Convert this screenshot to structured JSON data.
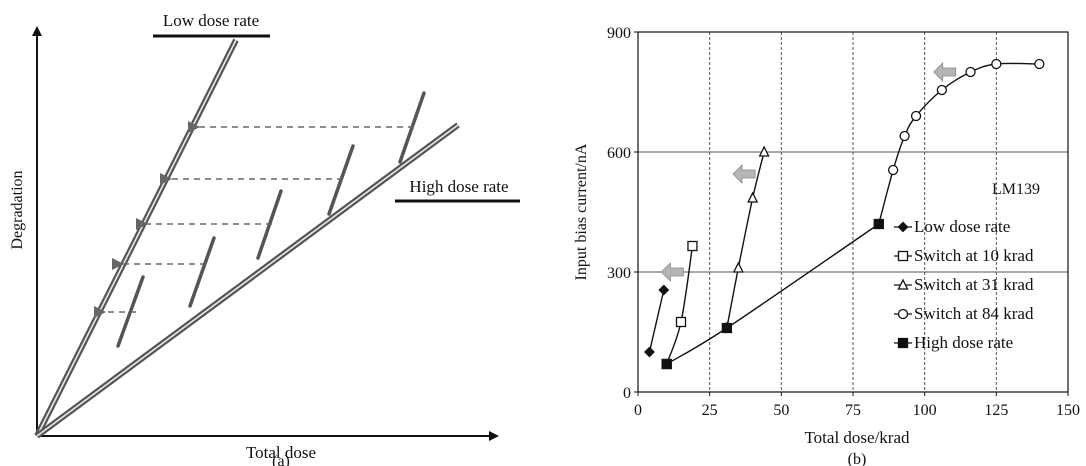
{
  "chart_data": [
    {
      "type": "line",
      "panel_label": "(a)",
      "xlabel": "Total dose",
      "ylabel": "Degradation",
      "series": [
        {
          "name": "Low dose rate"
        },
        {
          "name": "High dose rate"
        }
      ],
      "annotations": "Dashed arrows map each degradation step on the high dose rate line back to the low dose rate line",
      "arrow_count": 5
    },
    {
      "type": "line",
      "panel_label": "(b)",
      "xlabel": "Total dose/krad",
      "ylabel": "Input bias current/nA",
      "xlim": [
        0,
        150
      ],
      "ylim": [
        0,
        900
      ],
      "xticks": [
        0,
        25,
        50,
        75,
        100,
        125,
        150
      ],
      "yticks": [
        0,
        300,
        600,
        900
      ],
      "grid": true,
      "annotation": "LM139",
      "legend_position": "bottom-right",
      "series": [
        {
          "name": "Low dose rate",
          "marker": "diamond-filled",
          "points": [
            [
              4,
              100
            ],
            [
              9,
              255
            ]
          ]
        },
        {
          "name": "Switch at 10 krad",
          "marker": "square-open",
          "points": [
            [
              10,
              70
            ],
            [
              15,
              175
            ],
            [
              19,
              365
            ]
          ]
        },
        {
          "name": "Switch at 31 krad",
          "marker": "triangle-open",
          "points": [
            [
              31,
              160
            ],
            [
              35,
              310
            ],
            [
              40,
              485
            ],
            [
              44,
              600
            ]
          ]
        },
        {
          "name": "Switch at 84 krad",
          "marker": "circle-open",
          "points": [
            [
              84,
              420
            ],
            [
              89,
              555
            ],
            [
              93,
              640
            ],
            [
              97,
              690
            ],
            [
              106,
              755
            ],
            [
              116,
              800
            ],
            [
              125,
              820
            ],
            [
              140,
              820
            ]
          ]
        },
        {
          "name": "High dose rate",
          "marker": "square-filled",
          "points": [
            [
              10,
              70
            ],
            [
              31,
              160
            ],
            [
              84,
              420
            ]
          ]
        }
      ],
      "arrow_markers": [
        [
          12,
          300
        ],
        [
          37,
          545
        ],
        [
          107,
          800
        ]
      ]
    }
  ]
}
